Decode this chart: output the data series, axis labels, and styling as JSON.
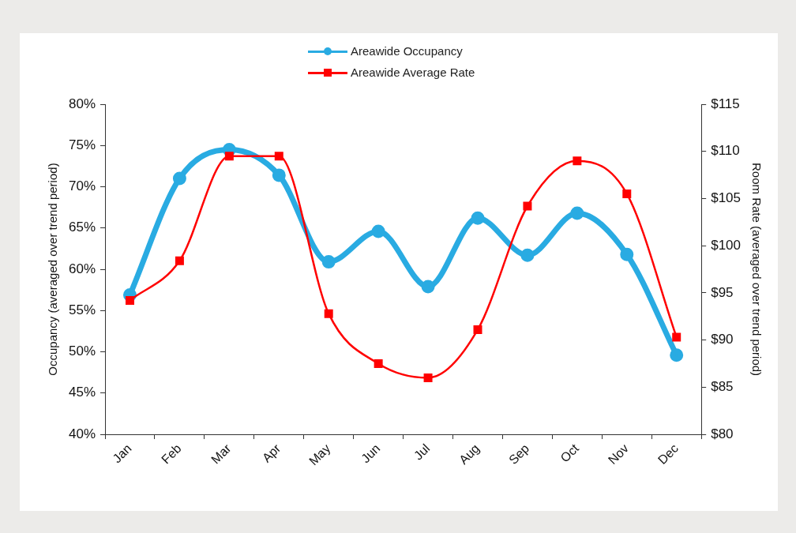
{
  "chart_data": {
    "type": "line",
    "ylabel": "Occupancy (averaged over trend period)",
    "y2label": "Room Rate (averaged over trend period)",
    "categories": [
      "Jan",
      "Feb",
      "Mar",
      "Apr",
      "May",
      "Jun",
      "Jul",
      "Aug",
      "Sep",
      "Oct",
      "Nov",
      "Dec"
    ],
    "series": [
      {
        "name": "Areawide Occupancy",
        "color": "#29abe2",
        "marker": "circle",
        "values": [
          56.9,
          71.0,
          74.5,
          71.4,
          60.9,
          64.6,
          57.9,
          66.2,
          61.7,
          66.8,
          61.8,
          49.6
        ]
      },
      {
        "name": "Areawide Average Rate",
        "color": "#ff0000",
        "marker": "square",
        "axis": "y2",
        "values": [
          94.2,
          98.4,
          109.5,
          109.5,
          92.8,
          87.5,
          86.0,
          91.1,
          104.2,
          109.0,
          105.5,
          90.3
        ]
      }
    ],
    "ylim": [
      40,
      80
    ],
    "yticks": [
      {
        "value": 40,
        "label": "40%"
      },
      {
        "value": 45,
        "label": "45%"
      },
      {
        "value": 50,
        "label": "50%"
      },
      {
        "value": 55,
        "label": "55%"
      },
      {
        "value": 60,
        "label": "60%"
      },
      {
        "value": 65,
        "label": "65%"
      },
      {
        "value": 70,
        "label": "70%"
      },
      {
        "value": 75,
        "label": "75%"
      },
      {
        "value": 80,
        "label": "80%"
      }
    ],
    "y2lim": [
      80,
      115
    ],
    "y2ticks": [
      {
        "value": 80,
        "label": "$80"
      },
      {
        "value": 85,
        "label": "$85"
      },
      {
        "value": 90,
        "label": "$90"
      },
      {
        "value": 95,
        "label": "$95"
      },
      {
        "value": 100,
        "label": "$100"
      },
      {
        "value": 105,
        "label": "$105"
      },
      {
        "value": 110,
        "label": "$110"
      },
      {
        "value": 115,
        "label": "$115"
      }
    ],
    "grid": false,
    "legend": "top",
    "line_style": "solid"
  }
}
